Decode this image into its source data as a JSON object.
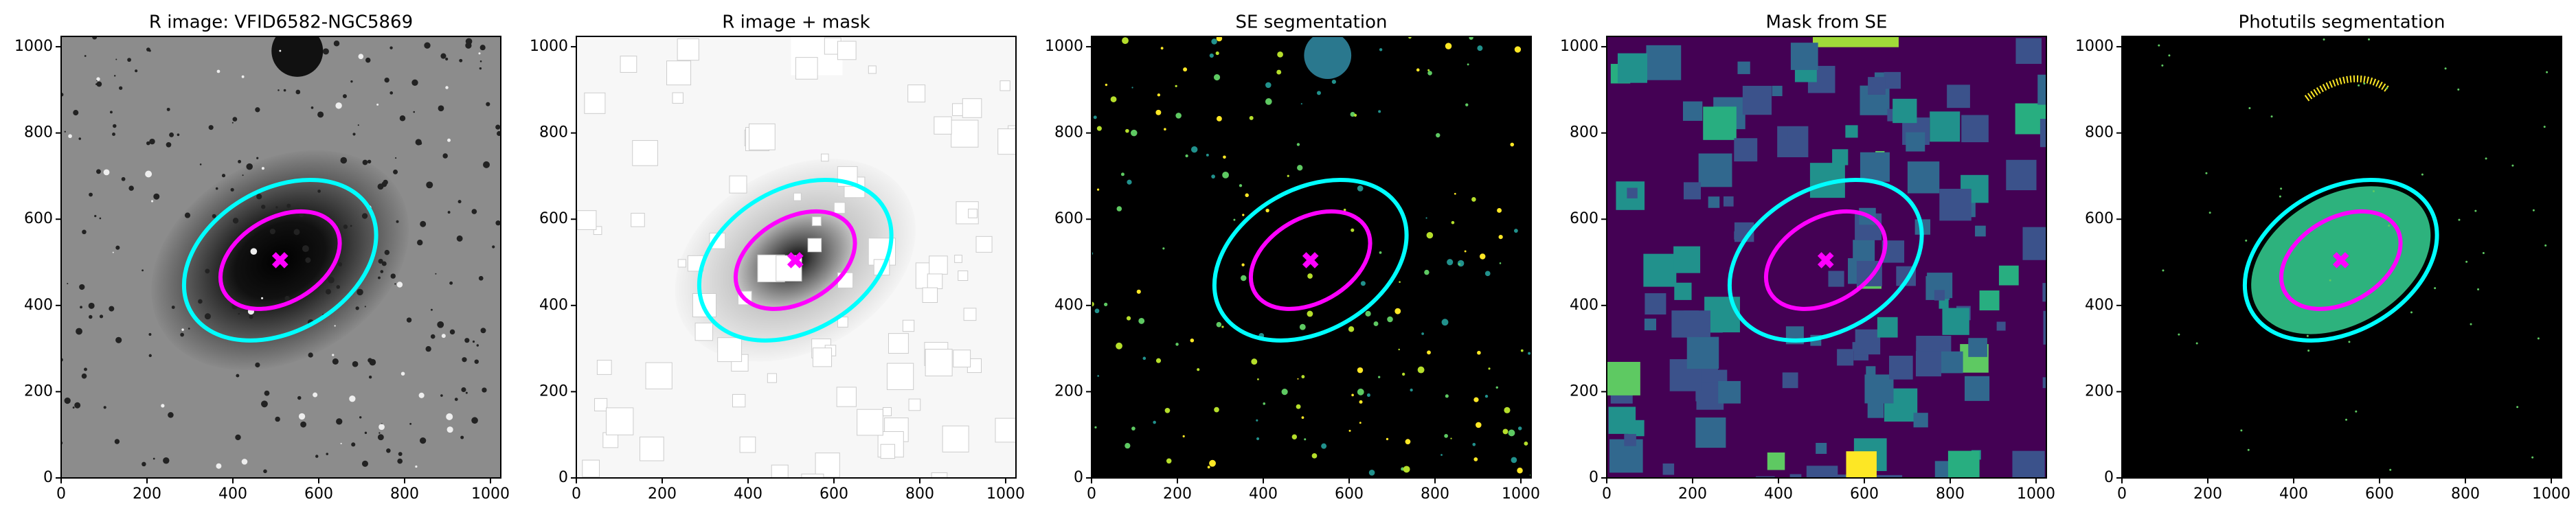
{
  "chart_data": [
    {
      "type": "image",
      "title": "R image: VFID6582-NGC5869",
      "xlim": [
        0,
        1024
      ],
      "ylim": [
        0,
        1024
      ],
      "xticks": [
        0,
        200,
        400,
        600,
        800,
        1000
      ],
      "yticks": [
        0,
        200,
        400,
        600,
        800,
        1000
      ],
      "ellipses": [
        {
          "x": 510,
          "y": 505,
          "rx": 240,
          "ry": 165,
          "angle": 30,
          "color": "#00ffff"
        },
        {
          "x": 510,
          "y": 505,
          "rx": 150,
          "ry": 98,
          "angle": 30,
          "color": "#ff00ff"
        }
      ]
    },
    {
      "type": "image",
      "title": "R image + mask",
      "xlim": [
        0,
        1024
      ],
      "ylim": [
        0,
        1024
      ],
      "xticks": [
        0,
        200,
        400,
        600,
        800,
        1000
      ],
      "yticks": [
        0,
        200,
        400,
        600,
        800,
        1000
      ],
      "ellipses": [
        {
          "x": 510,
          "y": 505,
          "rx": 240,
          "ry": 165,
          "angle": 30,
          "color": "#00ffff"
        },
        {
          "x": 510,
          "y": 505,
          "rx": 150,
          "ry": 98,
          "angle": 30,
          "color": "#ff00ff"
        }
      ]
    },
    {
      "type": "image",
      "title": "SE segmentation",
      "xlim": [
        0,
        1024
      ],
      "ylim": [
        0,
        1024
      ],
      "xticks": [
        0,
        200,
        400,
        600,
        800,
        1000
      ],
      "yticks": [
        0,
        200,
        400,
        600,
        800,
        1000
      ],
      "ellipses": [
        {
          "x": 510,
          "y": 505,
          "rx": 240,
          "ry": 165,
          "angle": 30,
          "color": "#00ffff"
        },
        {
          "x": 510,
          "y": 505,
          "rx": 150,
          "ry": 98,
          "angle": 30,
          "color": "#ff00ff"
        }
      ]
    },
    {
      "type": "image",
      "title": "Mask from SE",
      "xlim": [
        0,
        1024
      ],
      "ylim": [
        0,
        1024
      ],
      "xticks": [
        0,
        200,
        400,
        600,
        800,
        1000
      ],
      "yticks": [
        0,
        200,
        400,
        600,
        800,
        1000
      ],
      "ellipses": [
        {
          "x": 510,
          "y": 505,
          "rx": 240,
          "ry": 165,
          "angle": 30,
          "color": "#00ffff"
        },
        {
          "x": 510,
          "y": 505,
          "rx": 150,
          "ry": 98,
          "angle": 30,
          "color": "#ff00ff"
        }
      ]
    },
    {
      "type": "image",
      "title": "Photutils segmentation",
      "xlim": [
        0,
        1024
      ],
      "ylim": [
        0,
        1024
      ],
      "xticks": [
        0,
        200,
        400,
        600,
        800,
        1000
      ],
      "yticks": [
        0,
        200,
        400,
        600,
        800,
        1000
      ],
      "ellipses": [
        {
          "x": 510,
          "y": 505,
          "rx": 240,
          "ry": 165,
          "angle": 30,
          "color": "#00ffff"
        },
        {
          "x": 510,
          "y": 505,
          "rx": 150,
          "ry": 98,
          "angle": 30,
          "color": "#ff00ff"
        }
      ]
    }
  ]
}
